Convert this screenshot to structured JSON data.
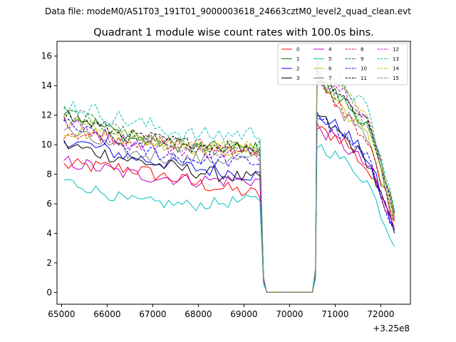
{
  "suptitle": "Data file: modeM0/AS1T03_191T01_9000003618_24663cztM0_level2_quad_clean.evt",
  "chart_data": {
    "type": "line",
    "title": "Quadrant 1 module wise count rates with 100.0s bins.",
    "xlabel": "",
    "ylabel": "",
    "x_offset_label": "+3.25e8",
    "xlim": [
      64900,
      72650
    ],
    "ylim": [
      -0.8,
      17.0
    ],
    "x_ticks": [
      65000,
      66000,
      67000,
      68000,
      69000,
      70000,
      71000,
      72000
    ],
    "x_tick_labels": [
      "65000",
      "66000",
      "67000",
      "68000",
      "69000",
      "70000",
      "71000",
      "72000"
    ],
    "y_ticks": [
      0,
      2,
      4,
      6,
      8,
      10,
      12,
      14,
      16
    ],
    "y_tick_labels": [
      "0",
      "2",
      "4",
      "6",
      "8",
      "10",
      "12",
      "14",
      "16"
    ],
    "legend_position": "top-right",
    "legend_columns": 4,
    "segments": [
      {
        "x_start": 65050,
        "x_end": 69350,
        "step": 100
      },
      {
        "x_start": 69500,
        "x_end": 70500,
        "step": 100
      },
      {
        "x_start": 70600,
        "x_end": 72300,
        "step": 100
      }
    ],
    "series": [
      {
        "name": "0",
        "color": "#ff0000",
        "dash": "solid",
        "seg1": [
          8.6,
          8.4,
          7.4,
          6.6
        ],
        "gap_first": 0.8,
        "seg3": [
          11.0,
          10.4,
          8.2,
          4.8
        ],
        "noise": 0.5
      },
      {
        "name": "1",
        "color": "#008000",
        "dash": "solid",
        "seg1": [
          12.3,
          10.5,
          9.8,
          9.7
        ],
        "gap_first": 1.0,
        "seg3": [
          14.5,
          13.0,
          11.2,
          5.4
        ],
        "noise": 0.5
      },
      {
        "name": "2",
        "color": "#0000ff",
        "dash": "solid",
        "seg1": [
          10.4,
          9.2,
          8.4,
          7.9
        ],
        "gap_first": 0.8,
        "seg3": [
          12.0,
          11.0,
          9.0,
          4.2
        ],
        "noise": 0.5
      },
      {
        "name": "3",
        "color": "#000000",
        "dash": "solid",
        "seg1": [
          10.0,
          9.0,
          8.2,
          7.6
        ],
        "gap_first": 0.8,
        "seg3": [
          12.0,
          10.6,
          8.8,
          4.0
        ],
        "noise": 0.5
      },
      {
        "name": "4",
        "color": "#bf00bf",
        "dash": "solid",
        "seg1": [
          8.9,
          8.0,
          7.6,
          7.6
        ],
        "gap_first": 0.8,
        "seg3": [
          11.2,
          10.0,
          8.5,
          4.4
        ],
        "noise": 0.5
      },
      {
        "name": "5",
        "color": "#00bfbf",
        "dash": "solid",
        "seg1": [
          7.6,
          6.2,
          5.9,
          6.3
        ],
        "gap_first": 0.6,
        "seg3": [
          10.0,
          9.0,
          7.4,
          3.1
        ],
        "noise": 0.4
      },
      {
        "name": "6",
        "color": "#bfbf00",
        "dash": "solid",
        "seg1": [
          11.0,
          10.4,
          9.8,
          9.6
        ],
        "gap_first": 1.0,
        "seg3": [
          14.5,
          12.5,
          10.4,
          5.0
        ],
        "noise": 0.5
      },
      {
        "name": "7",
        "color": "#808080",
        "dash": "solid",
        "seg1": [
          11.0,
          9.4,
          9.0,
          9.0
        ],
        "gap_first": 1.0,
        "seg3": [
          14.8,
          12.2,
          10.2,
          4.8
        ],
        "noise": 0.5
      },
      {
        "name": "8",
        "color": "#ff0000",
        "dash": "dashed",
        "seg1": [
          10.9,
          10.3,
          10.0,
          9.6
        ],
        "gap_first": 1.0,
        "seg3": [
          14.0,
          12.4,
          10.0,
          4.9
        ],
        "noise": 0.5
      },
      {
        "name": "9",
        "color": "#008000",
        "dash": "dashed",
        "seg1": [
          12.2,
          10.7,
          9.8,
          9.8
        ],
        "gap_first": 1.0,
        "seg3": [
          14.6,
          13.0,
          11.0,
          5.2
        ],
        "noise": 0.5
      },
      {
        "name": "10",
        "color": "#0000ff",
        "dash": "dashed",
        "seg1": [
          11.4,
          9.8,
          9.0,
          8.8
        ],
        "gap_first": 0.9,
        "seg3": [
          12.0,
          10.5,
          8.9,
          4.3
        ],
        "noise": 0.5
      },
      {
        "name": "11",
        "color": "#000000",
        "dash": "dashed",
        "seg1": [
          12.0,
          10.6,
          10.0,
          9.8
        ],
        "gap_first": 1.0,
        "seg3": [
          15.0,
          13.2,
          11.6,
          5.4
        ],
        "noise": 0.5
      },
      {
        "name": "12",
        "color": "#bf00bf",
        "dash": "dashed",
        "seg1": [
          11.5,
          10.2,
          9.6,
          9.3
        ],
        "gap_first": 1.0,
        "seg3": [
          14.6,
          13.8,
          11.8,
          5.0
        ],
        "noise": 0.5
      },
      {
        "name": "13",
        "color": "#00bfbf",
        "dash": "dashed",
        "seg1": [
          12.8,
          11.6,
          10.6,
          10.8
        ],
        "gap_first": 1.0,
        "seg3": [
          16.0,
          14.2,
          12.2,
          5.6
        ],
        "noise": 0.6
      },
      {
        "name": "14",
        "color": "#bfbf00",
        "dash": "dashed",
        "seg1": [
          11.8,
          10.6,
          10.0,
          9.8
        ],
        "gap_first": 1.0,
        "seg3": [
          15.2,
          13.6,
          12.0,
          5.2
        ],
        "noise": 0.5
      },
      {
        "name": "15",
        "color": "#808080",
        "dash": "dashed",
        "seg1": [
          12.4,
          10.6,
          9.8,
          9.6
        ],
        "gap_first": 1.0,
        "seg3": [
          15.6,
          13.8,
          11.4,
          5.2
        ],
        "noise": 0.5
      }
    ]
  }
}
